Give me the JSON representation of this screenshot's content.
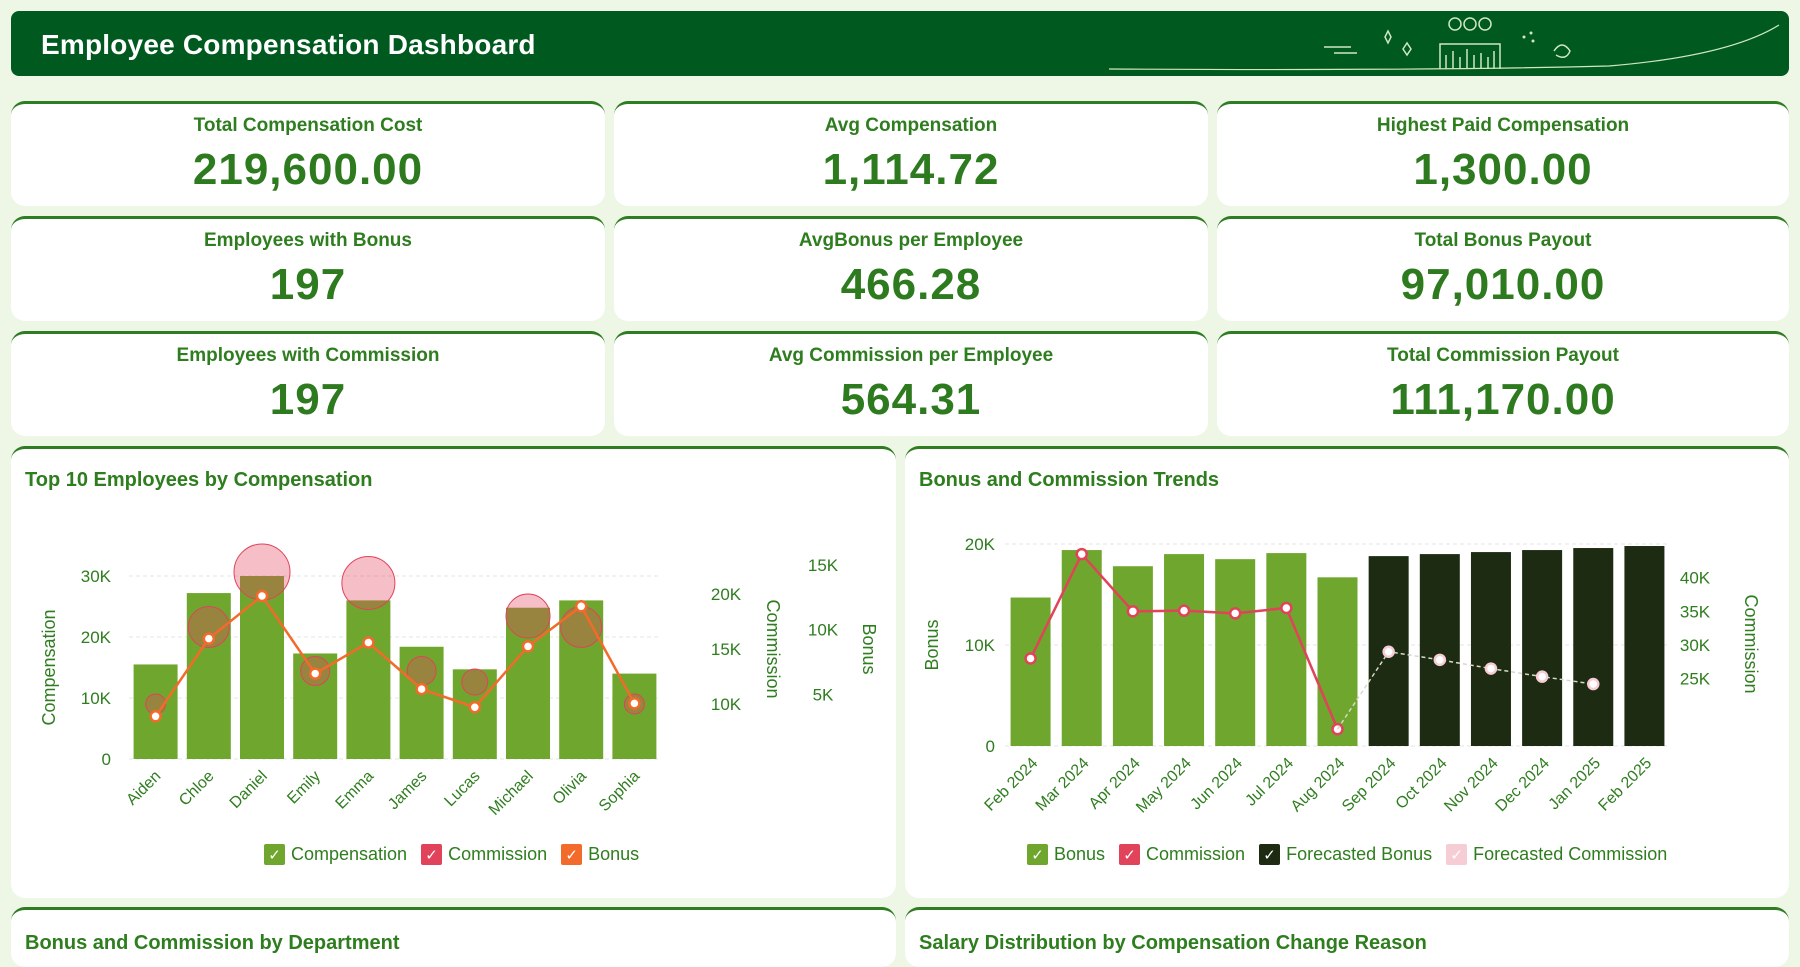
{
  "header": {
    "title": "Employee Compensation Dashboard"
  },
  "kpis": [
    {
      "label": "Total Compensation Cost",
      "value": "219,600.00"
    },
    {
      "label": "Avg Compensation",
      "value": "1,114.72"
    },
    {
      "label": "Highest Paid Compensation",
      "value": "1,300.00"
    },
    {
      "label": "Employees with Bonus",
      "value": "197"
    },
    {
      "label": "AvgBonus per Employee",
      "value": "466.28"
    },
    {
      "label": "Total Bonus Payout",
      "value": "97,010.00"
    },
    {
      "label": "Employees with Commission",
      "value": "197"
    },
    {
      "label": "Avg Commission per Employee",
      "value": "564.31"
    },
    {
      "label": "Total Commission Payout",
      "value": "111,170.00"
    }
  ],
  "panels": {
    "top10": {
      "title": "Top 10 Employees by Compensation"
    },
    "trends": {
      "title": "Bonus and Commission Trends"
    },
    "dept": {
      "title": "Bonus and Commission by Department"
    },
    "salary": {
      "title": "Salary Distribution by Compensation Change Reason"
    }
  },
  "colors": {
    "compensation": "#6fa62d",
    "commission": "#e0435a",
    "bonus": "#f26b2a",
    "forecast_bonus": "#1c2b12",
    "forecast_commission": "#f7cdd5"
  },
  "chart_data": [
    {
      "type": "bar",
      "title": "Top 10 Employees by Compensation",
      "categories": [
        "Aiden",
        "Chloe",
        "Daniel",
        "Emily",
        "Emma",
        "James",
        "Lucas",
        "Michael",
        "Olivia",
        "Sophia"
      ],
      "series": [
        {
          "name": "Compensation",
          "type": "bar",
          "axis": "Compensation",
          "values": [
            15500,
            27200,
            30000,
            17300,
            26000,
            18400,
            14700,
            24800,
            26000,
            14000
          ]
        },
        {
          "name": "Commission",
          "type": "bubble",
          "axis": "Commission",
          "values": [
            10000,
            17000,
            22000,
            13000,
            21000,
            13000,
            12000,
            18000,
            17000,
            10000
          ]
        },
        {
          "name": "Bonus",
          "type": "line",
          "axis": "Bonus",
          "values": [
            3300,
            9300,
            12600,
            6600,
            9000,
            5400,
            4000,
            8700,
            11800,
            4300
          ]
        }
      ],
      "axes": {
        "Compensation": {
          "label": "Compensation",
          "ticks": [
            "0",
            "10K",
            "20K",
            "30K"
          ],
          "range": [
            0,
            30000
          ]
        },
        "Commission": {
          "label": "Commission",
          "ticks": [
            "10K",
            "15K",
            "20K"
          ],
          "range": [
            5000,
            25000
          ]
        },
        "Bonus": {
          "label": "Bonus",
          "ticks": [
            "5K",
            "10K",
            "15K"
          ],
          "range": [
            0,
            17000
          ]
        }
      },
      "legend": [
        "Compensation",
        "Commission",
        "Bonus"
      ],
      "legend_position": "bottom"
    },
    {
      "type": "bar",
      "title": "Bonus and Commission Trends",
      "categories": [
        "Feb 2024",
        "Mar 2024",
        "Apr 2024",
        "May 2024",
        "Jun 2024",
        "Jul 2024",
        "Aug 2024",
        "Sep 2024",
        "Oct 2024",
        "Nov 2024",
        "Dec 2024",
        "Jan 2025",
        "Feb 2025"
      ],
      "series": [
        {
          "name": "Bonus",
          "type": "bar",
          "axis": "Bonus",
          "values": [
            14700,
            19400,
            17800,
            19000,
            18500,
            19100,
            16700,
            null,
            null,
            null,
            null,
            null,
            null
          ]
        },
        {
          "name": "Commission",
          "type": "line",
          "axis": "Commission",
          "values": [
            28000,
            43500,
            35000,
            35100,
            34700,
            35500,
            17500,
            null,
            null,
            null,
            null,
            null,
            null
          ]
        },
        {
          "name": "Forecasted Bonus",
          "type": "bar",
          "axis": "Bonus",
          "values": [
            null,
            null,
            null,
            null,
            null,
            null,
            null,
            18800,
            19000,
            19200,
            19400,
            19600,
            19800
          ]
        },
        {
          "name": "Forecasted Commission",
          "type": "line",
          "axis": "Commission",
          "values": [
            null,
            null,
            null,
            null,
            null,
            null,
            17500,
            29000,
            27800,
            26500,
            25300,
            24200,
            null
          ]
        }
      ],
      "axes": {
        "Bonus": {
          "label": "Bonus",
          "ticks": [
            "0",
            "10K",
            "20K"
          ],
          "range": [
            0,
            20000
          ]
        },
        "Commission": {
          "label": "Commission",
          "ticks": [
            "25K",
            "30K",
            "35K",
            "40K"
          ],
          "range": [
            15000,
            45000
          ]
        }
      },
      "legend": [
        "Bonus",
        "Commission",
        "Forecasted Bonus",
        "Forecasted Commission"
      ],
      "legend_position": "bottom"
    }
  ]
}
